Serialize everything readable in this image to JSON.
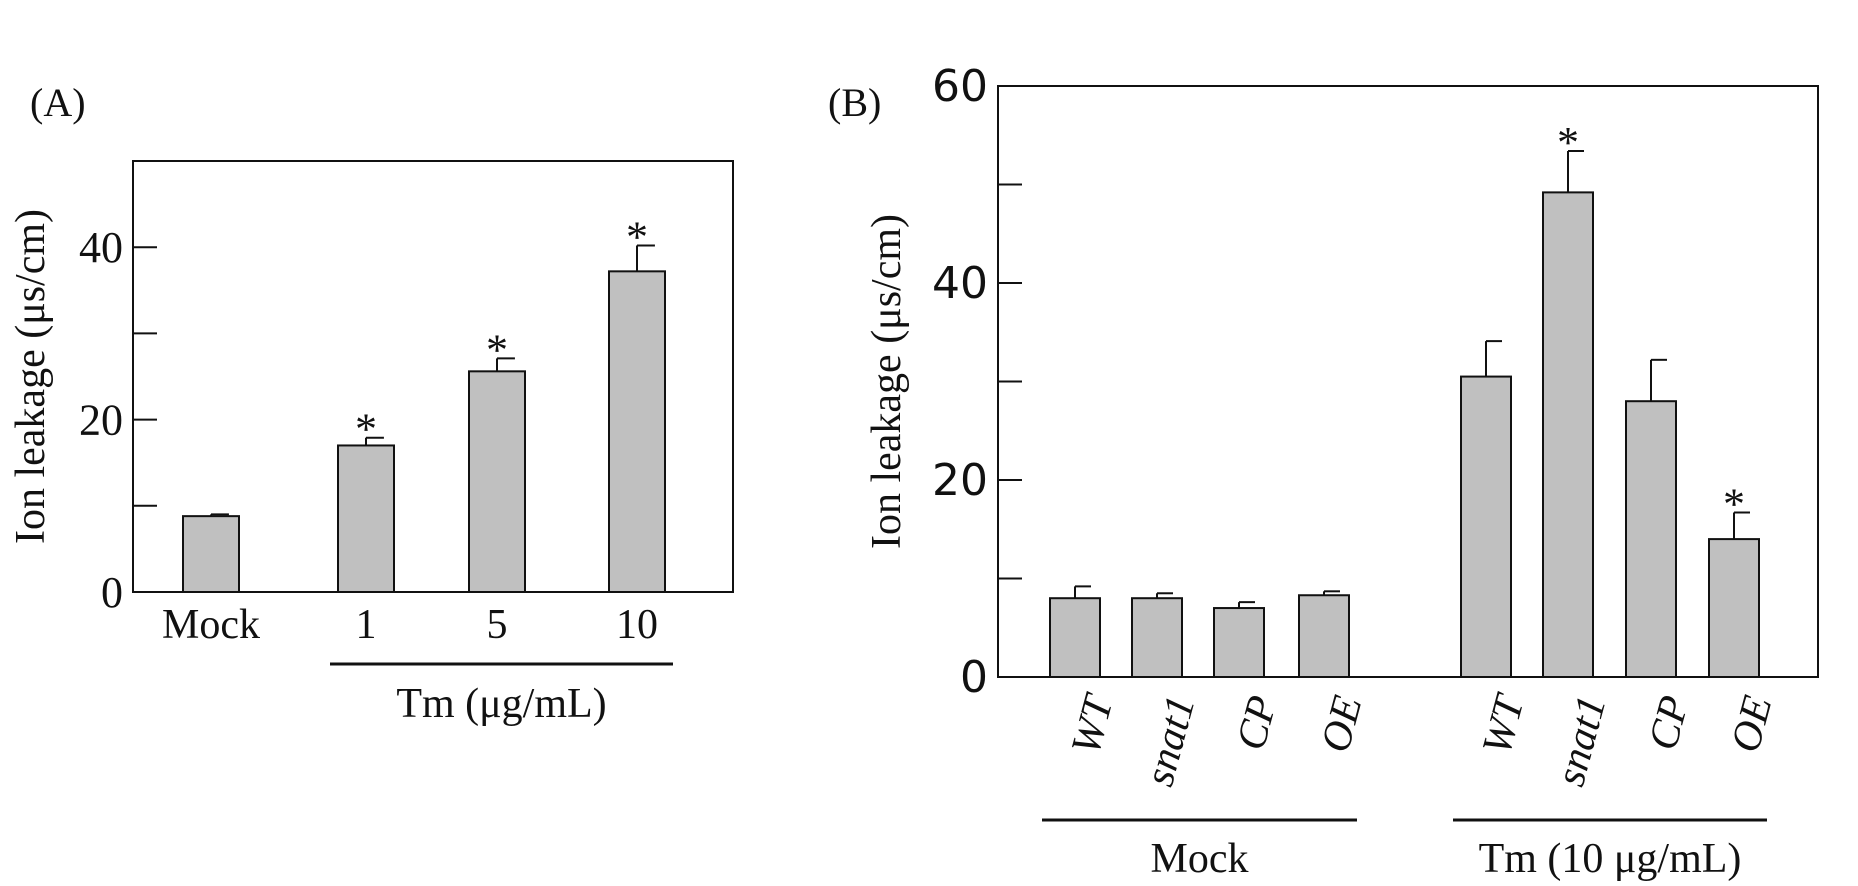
{
  "chart_data": [
    {
      "type": "bar",
      "panel_label": "(A)",
      "ylabel": "Ion leakage (μs/cm)",
      "ylim": [
        0,
        50
      ],
      "yticks": [
        0,
        20,
        40
      ],
      "categories": [
        "Mock",
        "1",
        "5",
        "10"
      ],
      "values": [
        8.8,
        17.0,
        25.6,
        37.2
      ],
      "errors": [
        0.2,
        0.9,
        1.5,
        3.0
      ],
      "significance": [
        "",
        "*",
        "*",
        "*"
      ],
      "group_labels": [
        {
          "label": "Tm (μg/mL)",
          "from": 1,
          "to": 3
        }
      ],
      "bar_color": "#c0c0c0"
    },
    {
      "type": "bar",
      "panel_label": "(B)",
      "ylabel": "Ion leakage (μs/cm)",
      "ylim": [
        0,
        60
      ],
      "yticks": [
        0,
        20,
        40,
        60
      ],
      "categories": [
        "WT",
        "snat1",
        "CP",
        "OE",
        "WT",
        "snat1",
        "CP",
        "OE"
      ],
      "values": [
        8.0,
        8.0,
        7.0,
        8.3,
        30.5,
        49.2,
        28.0,
        14.0
      ],
      "errors": [
        1.2,
        0.5,
        0.6,
        0.4,
        3.6,
        4.2,
        4.2,
        2.7
      ],
      "significance": [
        "",
        "",
        "",
        "",
        "",
        "*",
        "",
        "*"
      ],
      "group_labels": [
        {
          "label": "Mock",
          "from": 0,
          "to": 3
        },
        {
          "label": "Tm (10 μg/mL)",
          "from": 4,
          "to": 7
        }
      ],
      "bar_color": "#c0c0c0"
    }
  ]
}
